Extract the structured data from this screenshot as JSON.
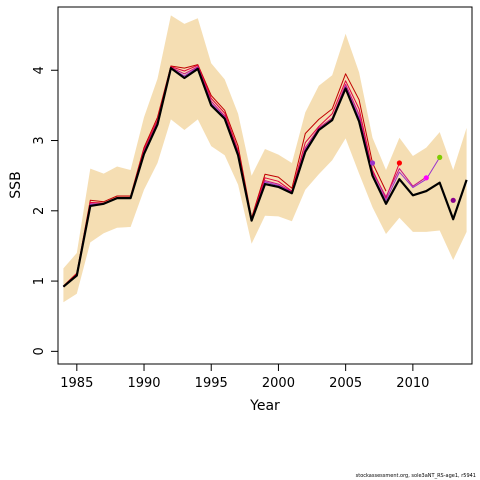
{
  "chart_data": {
    "type": "line",
    "title": "",
    "xlabel": "Year",
    "ylabel": "SSB",
    "xlim": [
      1983.6,
      2014.4
    ],
    "ylim": [
      -0.18,
      4.9
    ],
    "x_ticks": [
      1985,
      1990,
      1995,
      2000,
      2005,
      2010
    ],
    "x_tick_labels": [
      "1985",
      "1990",
      "1995",
      "2000",
      "2005",
      "2010"
    ],
    "y_ticks": [
      0,
      1,
      2,
      3,
      4
    ],
    "y_tick_labels": [
      "0",
      "1",
      "2",
      "3",
      "4"
    ],
    "grid": false,
    "colors": {
      "band": "#f5deb3",
      "main": "#000000",
      "retro": [
        "#c00000",
        "#e0003c",
        "#c71585",
        "#9932cc"
      ],
      "endpoints": [
        "#9932cc",
        "#ff0000",
        "#ff00ff",
        "#7fcc00",
        "#8b008b"
      ]
    },
    "band": {
      "x": [
        1984,
        1985,
        1986,
        1987,
        1988,
        1989,
        1990,
        1991,
        1992,
        1993,
        1994,
        1995,
        1996,
        1997,
        1998,
        1999,
        2000,
        2001,
        2002,
        2003,
        2004,
        2005,
        2006,
        2007,
        2008,
        2009,
        2010,
        2011,
        2012,
        2013,
        2014
      ],
      "upper": [
        1.18,
        1.4,
        2.6,
        2.53,
        2.63,
        2.58,
        3.33,
        3.88,
        4.78,
        4.66,
        4.74,
        4.1,
        3.87,
        3.38,
        2.5,
        2.88,
        2.8,
        2.68,
        3.4,
        3.78,
        3.93,
        4.52,
        3.97,
        3.04,
        2.58,
        3.04,
        2.78,
        2.9,
        3.12,
        2.58,
        3.18
      ],
      "lower": [
        0.7,
        0.82,
        1.55,
        1.68,
        1.76,
        1.77,
        2.3,
        2.68,
        3.3,
        3.15,
        3.3,
        2.92,
        2.79,
        2.37,
        1.53,
        1.93,
        1.92,
        1.85,
        2.3,
        2.52,
        2.72,
        3.03,
        2.53,
        2.05,
        1.67,
        1.9,
        1.7,
        1.7,
        1.72,
        1.3,
        1.7
      ]
    },
    "series": [
      {
        "x": [
          1984,
          1985,
          1986,
          1987,
          1988,
          1989,
          1990,
          1991,
          1992,
          1993,
          1994,
          1995,
          1996,
          1997,
          1998,
          1999,
          2000,
          2001,
          2002,
          2003,
          2004,
          2005,
          2006,
          2007,
          2008,
          2009,
          2010,
          2011,
          2012,
          2013,
          2014
        ],
        "values": [
          0.92,
          1.08,
          2.07,
          2.1,
          2.18,
          2.18,
          2.81,
          3.23,
          4.03,
          3.89,
          4.02,
          3.5,
          3.31,
          2.79,
          1.86,
          2.38,
          2.34,
          2.25,
          2.84,
          3.15,
          3.29,
          3.74,
          3.27,
          2.5,
          2.1,
          2.45,
          2.22,
          2.28,
          2.4,
          1.88,
          2.44
        ]
      },
      {
        "x": [
          1984,
          1985,
          1986,
          1987,
          1988,
          1989,
          1990,
          1991,
          1992,
          1993,
          1994,
          1995,
          1996,
          1997,
          1998,
          1999,
          2000,
          2001,
          2002,
          2003,
          2004,
          2005,
          2006,
          2007,
          2008
        ],
        "values": [
          0.93,
          1.11,
          2.15,
          2.13,
          2.21,
          2.21,
          2.9,
          3.33,
          4.06,
          4.03,
          4.08,
          3.64,
          3.43,
          2.92,
          1.9,
          2.52,
          2.48,
          2.32,
          3.1,
          3.3,
          3.45,
          3.95,
          3.58,
          2.68,
          2.28
        ]
      },
      {
        "x": [
          1984,
          1985,
          1986,
          1987,
          1988,
          1989,
          1990,
          1991,
          1992,
          1993,
          1994,
          1995,
          1996,
          1997,
          1998,
          1999,
          2000,
          2001,
          2002,
          2003,
          2004,
          2005,
          2006,
          2007,
          2008,
          2009
        ],
        "values": [
          0.92,
          1.1,
          2.12,
          2.11,
          2.19,
          2.19,
          2.87,
          3.29,
          4.05,
          3.99,
          4.07,
          3.6,
          3.39,
          2.86,
          1.88,
          2.47,
          2.42,
          2.28,
          2.97,
          3.2,
          3.38,
          3.85,
          3.45,
          2.58,
          2.18,
          2.68
        ]
      },
      {
        "x": [
          1984,
          1985,
          1986,
          1987,
          1988,
          1989,
          1990,
          1991,
          1992,
          1993,
          1994,
          1995,
          1996,
          1997,
          1998,
          1999,
          2000,
          2001,
          2002,
          2003,
          2004,
          2005,
          2006,
          2007,
          2008,
          2009,
          2010,
          2011
        ],
        "values": [
          0.92,
          1.09,
          2.1,
          2.1,
          2.18,
          2.18,
          2.84,
          3.26,
          4.04,
          3.95,
          4.05,
          3.56,
          3.35,
          2.83,
          1.87,
          2.43,
          2.38,
          2.27,
          2.9,
          3.18,
          3.32,
          3.8,
          3.37,
          2.55,
          2.2,
          2.6,
          2.35,
          2.48
        ]
      },
      {
        "x": [
          1984,
          1985,
          1986,
          1987,
          1988,
          1989,
          1990,
          1991,
          1992,
          1993,
          1994,
          1995,
          1996,
          1997,
          1998,
          1999,
          2000,
          2001,
          2002,
          2003,
          2004,
          2005,
          2006,
          2007,
          2008,
          2009,
          2010,
          2011,
          2012
        ],
        "values": [
          0.92,
          1.08,
          2.09,
          2.1,
          2.18,
          2.18,
          2.83,
          3.25,
          4.03,
          3.92,
          4.04,
          3.53,
          3.33,
          2.81,
          1.86,
          2.41,
          2.36,
          2.26,
          2.87,
          3.16,
          3.3,
          3.77,
          3.32,
          2.52,
          2.15,
          2.55,
          2.33,
          2.45,
          2.76
        ]
      }
    ],
    "endpoints": [
      {
        "x": 2007,
        "y": 2.68
      },
      {
        "x": 2009,
        "y": 2.68
      },
      {
        "x": 2011,
        "y": 2.47
      },
      {
        "x": 2012,
        "y": 2.76
      },
      {
        "x": 2013,
        "y": 2.15
      }
    ]
  },
  "footer": "stockassessment.org, sole3aNT_RS-age1, r5941"
}
